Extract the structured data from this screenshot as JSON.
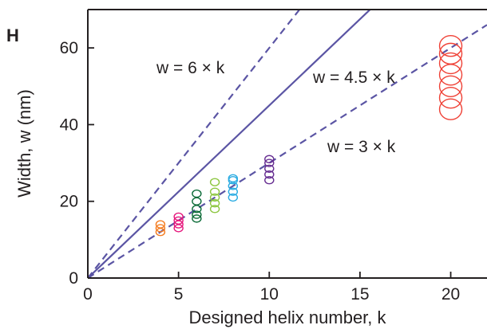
{
  "panel_label": "H",
  "colors": {
    "axis": "#231f20",
    "reference_lines": "#5b55a4"
  },
  "chart_data": {
    "type": "scatter",
    "xlabel": "Designed helix number, k",
    "ylabel": "Width, w (nm)",
    "xlim": [
      0,
      22
    ],
    "ylim": [
      0,
      70
    ],
    "x_ticks": [
      "0",
      "5",
      "10",
      "15",
      "20"
    ],
    "y_ticks": [
      "0",
      "20",
      "40",
      "60"
    ],
    "reference_lines": [
      {
        "label": "w = 6 × k",
        "slope": 6,
        "style": "dashed"
      },
      {
        "label": "w = 4.5 × k",
        "slope": 4.5,
        "style": "solid"
      },
      {
        "label": "w = 3 × k",
        "slope": 3,
        "style": "dashed"
      }
    ],
    "series": [
      {
        "x": 4,
        "values": [
          12,
          13,
          14
        ],
        "color": "#f47c20"
      },
      {
        "x": 5,
        "values": [
          13,
          14,
          15,
          16
        ],
        "color": "#e6177d"
      },
      {
        "x": 6,
        "values": [
          15.5,
          16.5,
          18,
          20,
          22
        ],
        "color": "#0b6b37"
      },
      {
        "x": 7,
        "values": [
          18,
          19.5,
          21,
          22.5,
          25
        ],
        "color": "#8cc63f"
      },
      {
        "x": 8,
        "values": [
          21,
          22.5,
          24,
          25.5,
          26
        ],
        "color": "#29abe2"
      },
      {
        "x": 10,
        "values": [
          25.5,
          27,
          28.5,
          30,
          31
        ],
        "color": "#662d91"
      },
      {
        "x": 20,
        "values": [
          44,
          47,
          50,
          53,
          56,
          58.5,
          60.5
        ],
        "color": "#ef4136"
      }
    ]
  }
}
